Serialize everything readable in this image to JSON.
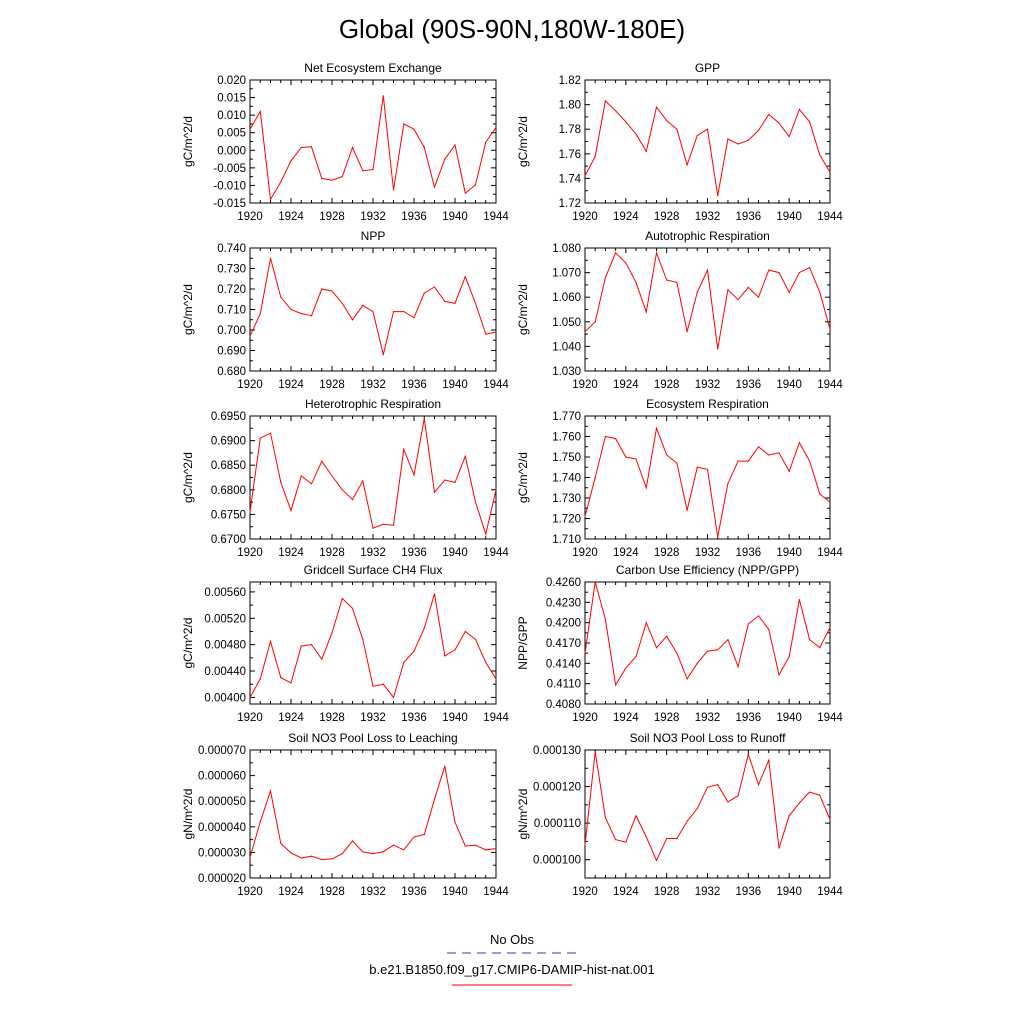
{
  "page": {
    "title": "Global (90S-90N,180W-180E)",
    "legend": [
      {
        "label": "No Obs",
        "color": "#3333cc",
        "style": "dashed"
      },
      {
        "label": "b.e21.B1850.f09_g17.CMIP6-DAMIP-hist-nat.001",
        "color": "#ff0000",
        "style": "solid"
      }
    ]
  },
  "chart_data": [
    {
      "type": "line",
      "title": "Net Ecosystem Exchange",
      "ylabel": "gC/m^2/d",
      "xlim": [
        1920,
        1944
      ],
      "ylim": [
        -0.015,
        0.02
      ],
      "yticks": [
        "0.020",
        "0.015",
        "0.010",
        "0.005",
        "0.000",
        "-0.005",
        "-0.010",
        "-0.015"
      ],
      "xticks": [
        "1920",
        "1924",
        "1928",
        "1932",
        "1936",
        "1940",
        "1944"
      ],
      "x": [
        1920,
        1921,
        1922,
        1923,
        1924,
        1925,
        1926,
        1927,
        1928,
        1929,
        1930,
        1931,
        1932,
        1933,
        1934,
        1935,
        1936,
        1937,
        1938,
        1939,
        1940,
        1941,
        1942,
        1943,
        1944
      ],
      "values": [
        0.006,
        0.011,
        -0.014,
        -0.009,
        -0.003,
        0.0008,
        0.001,
        -0.008,
        -0.0085,
        -0.0075,
        0.0008,
        -0.0058,
        -0.0055,
        0.0155,
        -0.0113,
        0.0075,
        0.006,
        0.0008,
        -0.0105,
        -0.0025,
        0.0015,
        -0.0122,
        -0.0098,
        0.0023,
        0.0065
      ]
    },
    {
      "type": "line",
      "title": "GPP",
      "ylabel": "gC/m^2/d",
      "xlim": [
        1920,
        1944
      ],
      "ylim": [
        1.72,
        1.82
      ],
      "yticks": [
        "1.82",
        "1.80",
        "1.78",
        "1.76",
        "1.74",
        "1.72"
      ],
      "xticks": [
        "1920",
        "1924",
        "1928",
        "1932",
        "1936",
        "1940",
        "1944"
      ],
      "x": [
        1920,
        1921,
        1922,
        1923,
        1924,
        1925,
        1926,
        1927,
        1928,
        1929,
        1930,
        1931,
        1932,
        1933,
        1934,
        1935,
        1936,
        1937,
        1938,
        1939,
        1940,
        1941,
        1942,
        1943,
        1944
      ],
      "values": [
        1.742,
        1.758,
        1.803,
        1.795,
        1.786,
        1.776,
        1.762,
        1.798,
        1.787,
        1.78,
        1.751,
        1.775,
        1.78,
        1.726,
        1.772,
        1.768,
        1.771,
        1.779,
        1.792,
        1.785,
        1.774,
        1.796,
        1.786,
        1.759,
        1.745
      ]
    },
    {
      "type": "line",
      "title": "NPP",
      "ylabel": "gC/m^2/d",
      "xlim": [
        1920,
        1944
      ],
      "ylim": [
        0.68,
        0.74
      ],
      "yticks": [
        "0.740",
        "0.730",
        "0.720",
        "0.710",
        "0.700",
        "0.690",
        "0.680"
      ],
      "xticks": [
        "1920",
        "1924",
        "1928",
        "1932",
        "1936",
        "1940",
        "1944"
      ],
      "x": [
        1920,
        1921,
        1922,
        1923,
        1924,
        1925,
        1926,
        1927,
        1928,
        1929,
        1930,
        1931,
        1932,
        1933,
        1934,
        1935,
        1936,
        1937,
        1938,
        1939,
        1940,
        1941,
        1942,
        1943,
        1944
      ],
      "values": [
        0.697,
        0.708,
        0.735,
        0.716,
        0.71,
        0.708,
        0.707,
        0.72,
        0.719,
        0.713,
        0.705,
        0.712,
        0.709,
        0.688,
        0.709,
        0.709,
        0.706,
        0.718,
        0.721,
        0.714,
        0.713,
        0.726,
        0.713,
        0.698,
        0.699
      ]
    },
    {
      "type": "line",
      "title": "Autotrophic Respiration",
      "ylabel": "gC/m^2/d",
      "xlim": [
        1920,
        1944
      ],
      "ylim": [
        1.03,
        1.08
      ],
      "yticks": [
        "1.080",
        "1.070",
        "1.060",
        "1.050",
        "1.040",
        "1.030"
      ],
      "xticks": [
        "1920",
        "1924",
        "1928",
        "1932",
        "1936",
        "1940",
        "1944"
      ],
      "x": [
        1920,
        1921,
        1922,
        1923,
        1924,
        1925,
        1926,
        1927,
        1928,
        1929,
        1930,
        1931,
        1932,
        1933,
        1934,
        1935,
        1936,
        1937,
        1938,
        1939,
        1940,
        1941,
        1942,
        1943,
        1944
      ],
      "values": [
        1.046,
        1.05,
        1.068,
        1.078,
        1.074,
        1.066,
        1.054,
        1.078,
        1.067,
        1.066,
        1.046,
        1.062,
        1.071,
        1.039,
        1.063,
        1.059,
        1.064,
        1.06,
        1.071,
        1.07,
        1.062,
        1.07,
        1.072,
        1.062,
        1.047
      ]
    },
    {
      "type": "line",
      "title": "Heterotrophic Respiration",
      "ylabel": "gC/m^2/d",
      "xlim": [
        1920,
        1944
      ],
      "ylim": [
        0.67,
        0.695
      ],
      "yticks": [
        "0.6950",
        "0.6900",
        "0.6850",
        "0.6800",
        "0.6750",
        "0.6700"
      ],
      "xticks": [
        "1920",
        "1924",
        "1928",
        "1932",
        "1936",
        "1940",
        "1944"
      ],
      "x": [
        1920,
        1921,
        1922,
        1923,
        1924,
        1925,
        1926,
        1927,
        1928,
        1929,
        1930,
        1931,
        1932,
        1933,
        1934,
        1935,
        1936,
        1937,
        1938,
        1939,
        1940,
        1941,
        1942,
        1943,
        1944
      ],
      "values": [
        0.6755,
        0.6905,
        0.6915,
        0.6815,
        0.6758,
        0.6828,
        0.6812,
        0.6858,
        0.6828,
        0.68,
        0.678,
        0.6818,
        0.6722,
        0.673,
        0.6728,
        0.6882,
        0.683,
        0.6945,
        0.6795,
        0.682,
        0.6815,
        0.6868,
        0.6775,
        0.671,
        0.68
      ]
    },
    {
      "type": "line",
      "title": "Ecosystem Respiration",
      "ylabel": "gC/m^2/d",
      "xlim": [
        1920,
        1944
      ],
      "ylim": [
        1.71,
        1.77
      ],
      "yticks": [
        "1.770",
        "1.760",
        "1.750",
        "1.740",
        "1.730",
        "1.720",
        "1.710"
      ],
      "xticks": [
        "1920",
        "1924",
        "1928",
        "1932",
        "1936",
        "1940",
        "1944"
      ],
      "x": [
        1920,
        1921,
        1922,
        1923,
        1924,
        1925,
        1926,
        1927,
        1928,
        1929,
        1930,
        1931,
        1932,
        1933,
        1934,
        1935,
        1936,
        1937,
        1938,
        1939,
        1940,
        1941,
        1942,
        1943,
        1944
      ],
      "values": [
        1.721,
        1.74,
        1.76,
        1.759,
        1.75,
        1.749,
        1.735,
        1.764,
        1.751,
        1.747,
        1.724,
        1.745,
        1.744,
        1.711,
        1.737,
        1.748,
        1.748,
        1.755,
        1.751,
        1.752,
        1.743,
        1.757,
        1.748,
        1.732,
        1.728
      ]
    },
    {
      "type": "line",
      "title": "Gridcell Surface CH4 Flux",
      "ylabel": "gC/m^2/d",
      "xlim": [
        1920,
        1944
      ],
      "ylim": [
        0.0039,
        0.00575
      ],
      "yticks": [
        "0.00560",
        "0.00520",
        "0.00480",
        "0.00440",
        "0.00400"
      ],
      "ytick_values": [
        0.0056,
        0.0052,
        0.0048,
        0.0044,
        0.004
      ],
      "xticks": [
        "1920",
        "1924",
        "1928",
        "1932",
        "1936",
        "1940",
        "1944"
      ],
      "x": [
        1920,
        1921,
        1922,
        1923,
        1924,
        1925,
        1926,
        1927,
        1928,
        1929,
        1930,
        1931,
        1932,
        1933,
        1934,
        1935,
        1936,
        1937,
        1938,
        1939,
        1940,
        1941,
        1942,
        1943,
        1944
      ],
      "values": [
        0.004,
        0.00428,
        0.00485,
        0.0043,
        0.00422,
        0.00478,
        0.0048,
        0.00458,
        0.00498,
        0.0055,
        0.00535,
        0.00488,
        0.00417,
        0.0042,
        0.004,
        0.00453,
        0.0047,
        0.00505,
        0.00557,
        0.00463,
        0.00472,
        0.005,
        0.00488,
        0.00453,
        0.00428
      ]
    },
    {
      "type": "line",
      "title": "Carbon Use Efficiency (NPP/GPP)",
      "ylabel": "NPP/GPP",
      "xlim": [
        1920,
        1944
      ],
      "ylim": [
        0.408,
        0.426
      ],
      "yticks": [
        "0.4260",
        "0.4230",
        "0.4200",
        "0.4170",
        "0.4140",
        "0.4110",
        "0.4080"
      ],
      "xticks": [
        "1920",
        "1924",
        "1928",
        "1932",
        "1936",
        "1940",
        "1944"
      ],
      "x": [
        1920,
        1921,
        1922,
        1923,
        1924,
        1925,
        1926,
        1927,
        1928,
        1929,
        1930,
        1931,
        1932,
        1933,
        1934,
        1935,
        1936,
        1937,
        1938,
        1939,
        1940,
        1941,
        1942,
        1943,
        1944
      ],
      "values": [
        0.4155,
        0.426,
        0.4205,
        0.4108,
        0.4133,
        0.415,
        0.42,
        0.4163,
        0.418,
        0.4155,
        0.4117,
        0.414,
        0.4158,
        0.416,
        0.4175,
        0.4135,
        0.4198,
        0.421,
        0.419,
        0.4123,
        0.415,
        0.4234,
        0.4175,
        0.4163,
        0.4193
      ]
    },
    {
      "type": "line",
      "title": "Soil NO3 Pool Loss to Leaching",
      "ylabel": "gN/m^2/d",
      "xlim": [
        1920,
        1944
      ],
      "ylim": [
        2e-05,
        7e-05
      ],
      "yticks": [
        "0.000070",
        "0.000060",
        "0.000050",
        "0.000040",
        "0.000030",
        "0.000020"
      ],
      "xticks": [
        "1920",
        "1924",
        "1928",
        "1932",
        "1936",
        "1940",
        "1944"
      ],
      "x": [
        1920,
        1921,
        1922,
        1923,
        1924,
        1925,
        1926,
        1927,
        1928,
        1929,
        1930,
        1931,
        1932,
        1933,
        1934,
        1935,
        1936,
        1937,
        1938,
        1939,
        1940,
        1941,
        1942,
        1943,
        1944
      ],
      "values": [
        2.8e-05,
        4.2e-05,
        5.4e-05,
        3.35e-05,
        2.98e-05,
        2.78e-05,
        2.85e-05,
        2.72e-05,
        2.75e-05,
        2.95e-05,
        3.45e-05,
        3.02e-05,
        2.95e-05,
        3.03e-05,
        3.28e-05,
        3.1e-05,
        3.6e-05,
        3.7e-05,
        5.08e-05,
        6.37e-05,
        4.18e-05,
        3.25e-05,
        3.28e-05,
        3.1e-05,
        3.15e-05
      ]
    },
    {
      "type": "line",
      "title": "Soil NO3 Pool Loss to Runoff",
      "ylabel": "gN/m^2/d",
      "xlim": [
        1920,
        1944
      ],
      "ylim": [
        9.5e-05,
        0.00013
      ],
      "yticks": [
        "0.000130",
        "0.000120",
        "0.000110",
        "0.000100"
      ],
      "ytick_values": [
        0.00013,
        0.00012,
        0.00011,
        0.0001
      ],
      "xticks": [
        "1920",
        "1924",
        "1928",
        "1932",
        "1936",
        "1940",
        "1944"
      ],
      "x": [
        1920,
        1921,
        1922,
        1923,
        1924,
        1925,
        1926,
        1927,
        1928,
        1929,
        1930,
        1931,
        1932,
        1933,
        1934,
        1935,
        1936,
        1937,
        1938,
        1939,
        1940,
        1941,
        1942,
        1943,
        1944
      ],
      "values": [
        0.000104,
        0.0001295,
        0.0001115,
        0.0001055,
        0.0001048,
        0.000112,
        0.0001062,
        9.98e-05,
        0.0001058,
        0.0001058,
        0.0001105,
        0.000114,
        0.0001198,
        0.0001205,
        0.0001158,
        0.0001175,
        0.0001288,
        0.0001205,
        0.0001272,
        0.0001032,
        0.000112,
        0.0001155,
        0.0001185,
        0.0001176,
        0.000111
      ]
    }
  ]
}
